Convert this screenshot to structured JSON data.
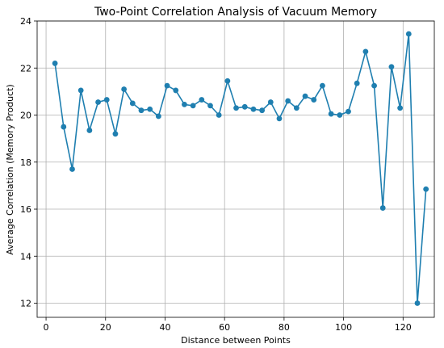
{
  "chart_data": {
    "type": "line",
    "title": "Two-Point Correlation Analysis of Vacuum Memory",
    "xlabel": "Distance between Points",
    "ylabel": "Average Correlation (Memory Product)",
    "xlim": [
      -3,
      130.5
    ],
    "ylim": [
      11.4,
      24.0
    ],
    "xticks": [
      0,
      20,
      40,
      60,
      80,
      100,
      120
    ],
    "yticks": [
      12,
      14,
      16,
      18,
      20,
      22,
      24
    ],
    "grid": true,
    "line_color": "#1f7fb0",
    "marker": "circle",
    "series": [
      {
        "x": [
          3,
          5.9,
          8.8,
          11.7,
          14.6,
          17.5,
          20.4,
          23.3,
          26.2,
          29.1,
          32,
          34.9,
          37.8,
          40.7,
          43.6,
          46.5,
          49.4,
          52.3,
          55.2,
          58.1,
          61,
          63.9,
          66.8,
          69.7,
          72.6,
          75.5,
          78.4,
          81.3,
          84.2,
          87.1,
          90,
          92.9,
          95.8,
          98.7,
          101.6,
          104.5,
          107.4,
          110.3,
          113.2,
          116.1,
          119,
          121.9,
          124.8,
          127.7
        ],
        "y": [
          22.2,
          19.5,
          17.7,
          21.05,
          19.35,
          20.55,
          20.65,
          19.2,
          21.1,
          20.5,
          20.2,
          20.25,
          19.95,
          21.25,
          21.05,
          20.45,
          20.4,
          20.65,
          20.4,
          20.0,
          21.45,
          20.3,
          20.35,
          20.25,
          20.2,
          20.55,
          19.85,
          20.6,
          20.3,
          20.8,
          20.65,
          21.25,
          20.05,
          20.0,
          20.15,
          21.35,
          22.7,
          21.25,
          16.05,
          22.05,
          20.3,
          23.45,
          12.0,
          16.85
        ]
      }
    ]
  }
}
